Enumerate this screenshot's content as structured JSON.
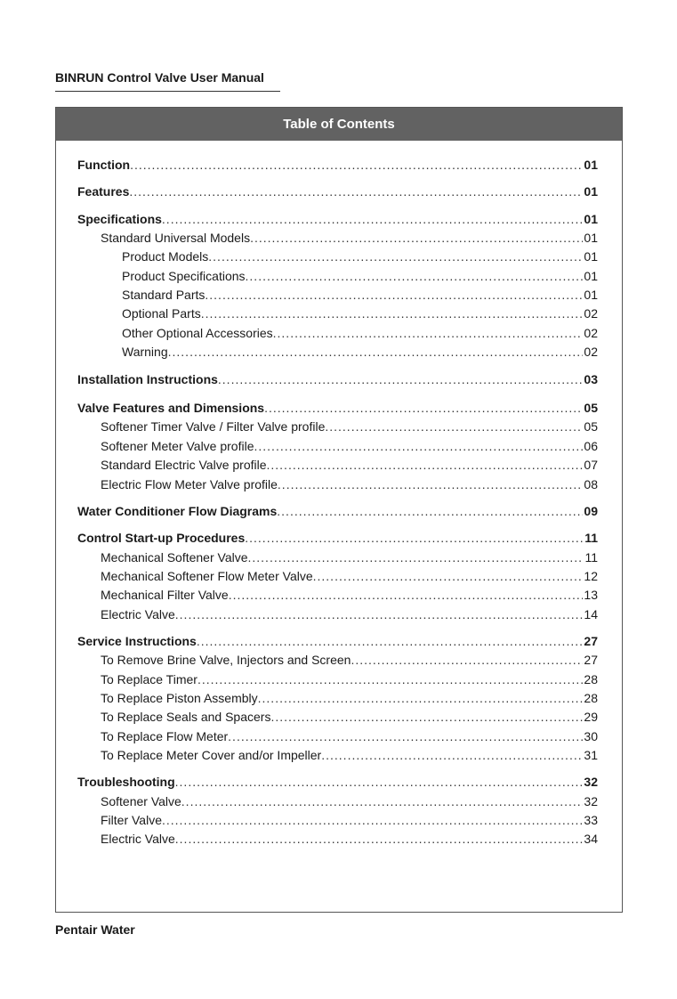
{
  "header": {
    "title": "BINRUN Control Valve User Manual"
  },
  "toc": {
    "title": "Table of Contents",
    "entries": [
      {
        "level": 0,
        "label": "Function",
        "page": "01"
      },
      {
        "level": 0,
        "label": "Features",
        "page": "01"
      },
      {
        "level": 0,
        "label": "Specifications",
        "page": "01"
      },
      {
        "level": 1,
        "label": "Standard Universal Models",
        "page": "01"
      },
      {
        "level": 2,
        "label": "Product Models",
        "page": "01"
      },
      {
        "level": 2,
        "label": "Product Specifications",
        "page": "01"
      },
      {
        "level": 2,
        "label": "Standard Parts",
        "page": "01"
      },
      {
        "level": 2,
        "label": "Optional Parts",
        "page": "02"
      },
      {
        "level": 2,
        "label": "Other Optional Accessories",
        "page": "02"
      },
      {
        "level": 2,
        "label": "Warning",
        "page": "02"
      },
      {
        "level": 0,
        "label": "Installation Instructions",
        "page": "03"
      },
      {
        "level": 0,
        "label": "Valve Features and Dimensions",
        "page": "05"
      },
      {
        "level": 1,
        "label": "Softener Timer Valve / Filter Valve profile",
        "page": "05"
      },
      {
        "level": 1,
        "label": "Softener Meter Valve profile",
        "page": "06"
      },
      {
        "level": 1,
        "label": "Standard Electric Valve profile",
        "page": "07"
      },
      {
        "level": 1,
        "label": "Electric Flow Meter Valve profile",
        "page": "08"
      },
      {
        "level": 0,
        "label": "Water Conditioner Flow Diagrams",
        "page": "09"
      },
      {
        "level": 0,
        "label": "Control Start-up Procedures",
        "page": "11"
      },
      {
        "level": 1,
        "label": "Mechanical Softener Valve",
        "page": "11"
      },
      {
        "level": 1,
        "label": "Mechanical Softener Flow Meter Valve",
        "page": "12"
      },
      {
        "level": 1,
        "label": "Mechanical Filter Valve",
        "page": "13"
      },
      {
        "level": 1,
        "label": "Electric Valve",
        "page": "14"
      },
      {
        "level": 0,
        "label": "Service Instructions",
        "page": "27"
      },
      {
        "level": 1,
        "label": "To Remove Brine Valve, Injectors and Screen",
        "page": "27"
      },
      {
        "level": 1,
        "label": "To Replace Timer",
        "page": "28"
      },
      {
        "level": 1,
        "label": "To Replace Piston Assembly",
        "page": "28"
      },
      {
        "level": 1,
        "label": "To Replace Seals and Spacers",
        "page": "29"
      },
      {
        "level": 1,
        "label": "To Replace Flow Meter",
        "page": "30"
      },
      {
        "level": 1,
        "label": "To Replace Meter Cover and/or Impeller",
        "page": "31"
      },
      {
        "level": 0,
        "label": "Troubleshooting",
        "page": "32"
      },
      {
        "level": 1,
        "label": "Softener Valve",
        "page": "32"
      },
      {
        "level": 1,
        "label": "Filter Valve",
        "page": "33"
      },
      {
        "level": 1,
        "label": "Electric Valve",
        "page": "34"
      }
    ]
  },
  "footer": {
    "text": "Pentair Water"
  }
}
